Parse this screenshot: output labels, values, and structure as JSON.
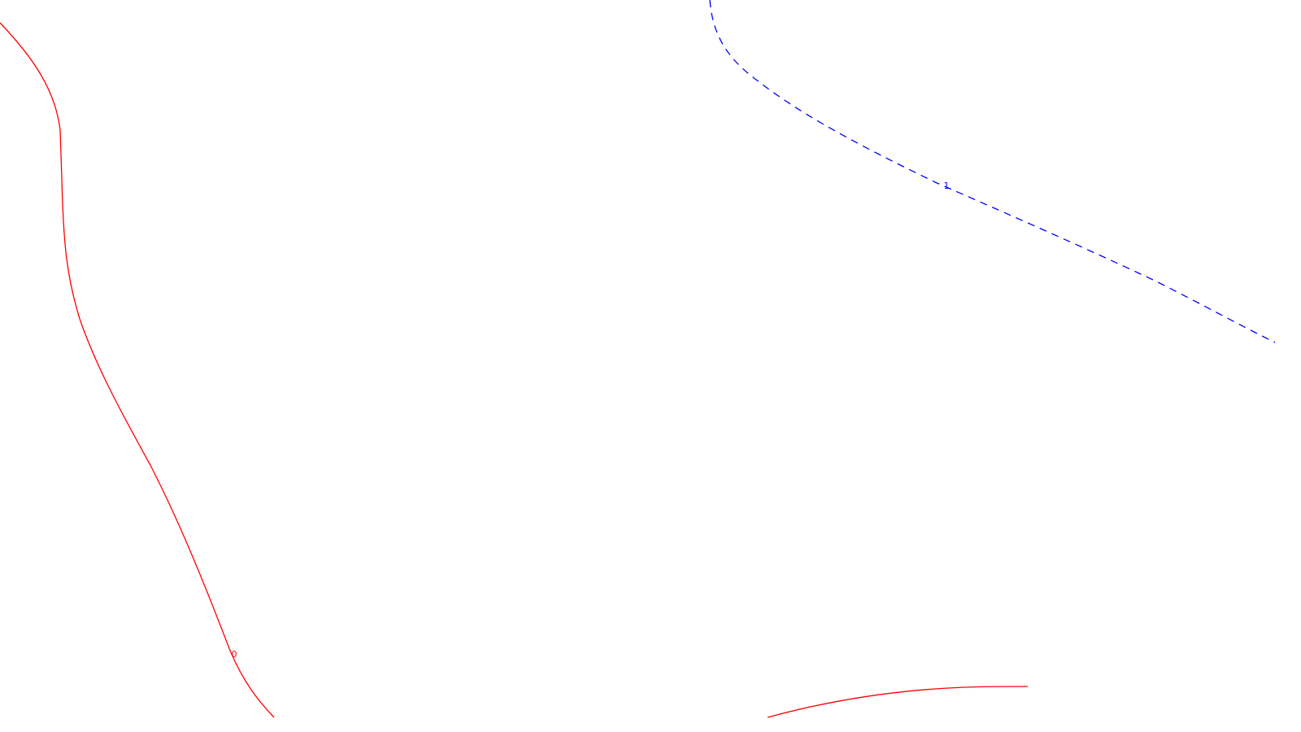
{
  "contours": [
    {
      "id": "contour-0-left",
      "level_label": "0",
      "color": "#ff0000",
      "style": "solid"
    },
    {
      "id": "contour-0-bottom",
      "level_label": "",
      "color": "#ff0000",
      "style": "solid"
    },
    {
      "id": "contour-1",
      "level_label": "1",
      "color": "#0000ff",
      "style": "dashed"
    }
  ]
}
